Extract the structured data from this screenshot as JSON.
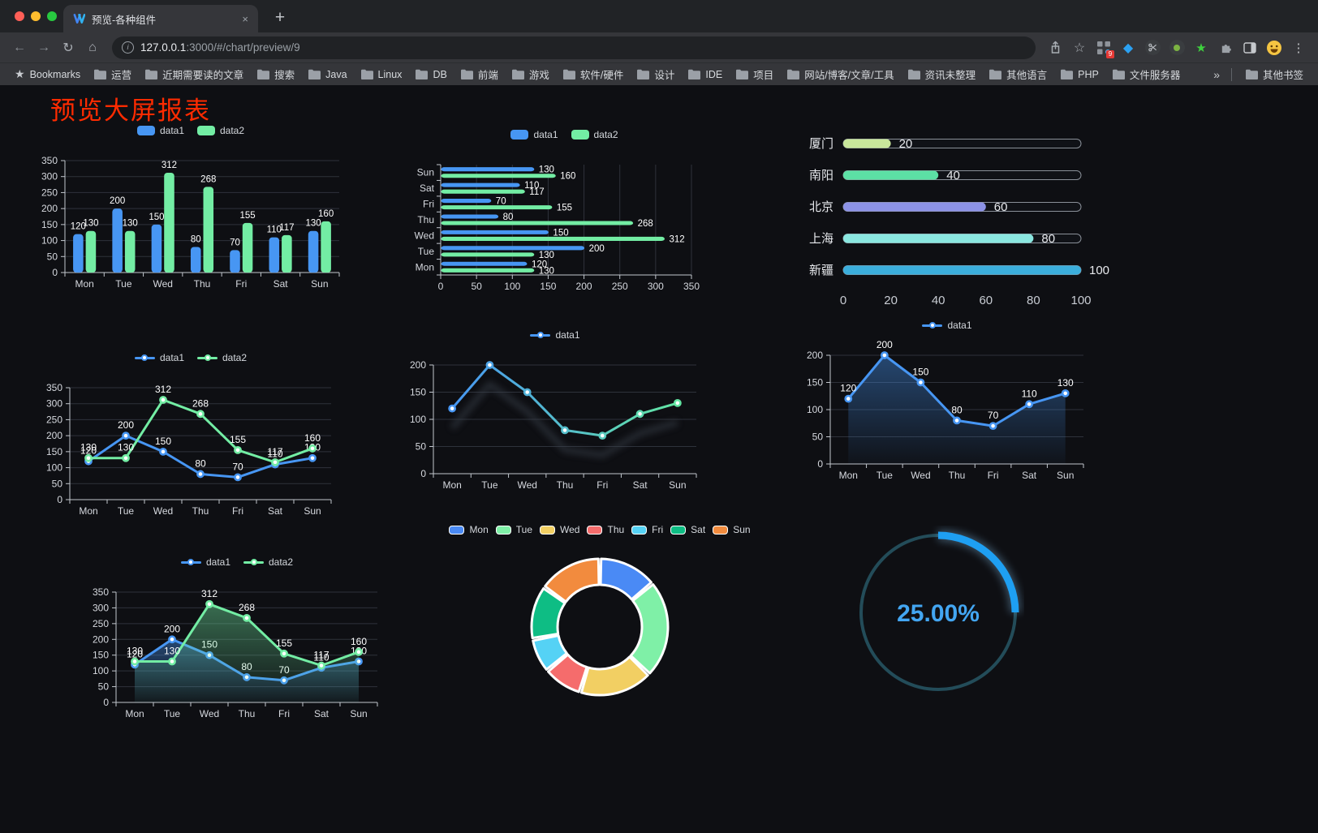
{
  "browser": {
    "tab": {
      "title": "预览-各种组件",
      "close_glyph": "×",
      "new_tab_glyph": "+"
    },
    "address": {
      "host": "127.0.0.1",
      "rest": ":3000/#/chart/preview/9"
    },
    "extensions_badge": "9",
    "bookmarks_label": "Bookmarks",
    "bookmarks": [
      "运营",
      "近期需要读的文章",
      "搜索",
      "Java",
      "Linux",
      "DB",
      "前端",
      "游戏",
      "软件/硬件",
      "设计",
      "IDE",
      "项目",
      "网站/博客/文章/工具",
      "资讯未整理",
      "其他语言",
      "PHP",
      "文件服务器"
    ],
    "overflow_glyph": "»",
    "other_bookmarks": "其他书签",
    "menu_glyph": "⋮"
  },
  "page": {
    "title": "预览大屏报表"
  },
  "chart_data": [
    {
      "type": "bar",
      "categories": [
        "Mon",
        "Tue",
        "Wed",
        "Thu",
        "Fri",
        "Sat",
        "Sun"
      ],
      "series": [
        {
          "name": "data1",
          "color": "#4796F3",
          "values": [
            120,
            200,
            150,
            80,
            70,
            110,
            130
          ]
        },
        {
          "name": "data2",
          "color": "#73EDA4",
          "values": [
            130,
            130,
            312,
            268,
            155,
            117,
            160
          ]
        }
      ],
      "ylim": [
        0,
        350
      ],
      "yticks": [
        0,
        50,
        100,
        150,
        200,
        250,
        300,
        350
      ],
      "legend": "rect",
      "value_labels": true,
      "grid": true
    },
    {
      "type": "hbar",
      "categories": [
        "Sun",
        "Sat",
        "Fri",
        "Thu",
        "Wed",
        "Tue",
        "Mon"
      ],
      "series": [
        {
          "name": "data1",
          "color": "#4796F3",
          "values": [
            130,
            110,
            70,
            80,
            150,
            200,
            120
          ]
        },
        {
          "name": "data2",
          "color": "#73EDA4",
          "values": [
            160,
            117,
            155,
            268,
            312,
            130,
            130
          ]
        }
      ],
      "xlim": [
        0,
        350
      ],
      "xticks": [
        0,
        50,
        100,
        150,
        200,
        250,
        300,
        350
      ],
      "legend": "rect",
      "value_labels": true,
      "grid": true
    },
    {
      "type": "progress",
      "rows": [
        {
          "label": "厦门",
          "value": 20,
          "color": "#C9E79B"
        },
        {
          "label": "南阳",
          "value": 40,
          "color": "#5CE0A5"
        },
        {
          "label": "北京",
          "value": 60,
          "color": "#8C92E6"
        },
        {
          "label": "上海",
          "value": 80,
          "color": "#8AE7E0"
        },
        {
          "label": "新疆",
          "value": 100,
          "color": "#3BAEDC"
        }
      ],
      "xlim": [
        0,
        100
      ],
      "xticks": [
        0,
        20,
        40,
        60,
        80,
        100
      ]
    },
    {
      "type": "line",
      "categories": [
        "Mon",
        "Tue",
        "Wed",
        "Thu",
        "Fri",
        "Sat",
        "Sun"
      ],
      "series": [
        {
          "name": "data1",
          "color": "#4796F3",
          "values": [
            120,
            200,
            150,
            80,
            70,
            110,
            130
          ]
        },
        {
          "name": "data2",
          "color": "#73EDA4",
          "values": [
            130,
            130,
            312,
            268,
            155,
            117,
            160
          ]
        }
      ],
      "ylim": [
        0,
        350
      ],
      "yticks": [
        0,
        50,
        100,
        150,
        200,
        250,
        300,
        350
      ],
      "legend": "dot",
      "value_labels": true,
      "grid": true
    },
    {
      "type": "line",
      "categories": [
        "Mon",
        "Tue",
        "Wed",
        "Thu",
        "Fri",
        "Sat",
        "Sun"
      ],
      "series": [
        {
          "name": "data1",
          "color": "#4796F3",
          "color2": "#63E6A3",
          "values": [
            120,
            200,
            150,
            80,
            70,
            110,
            130
          ]
        }
      ],
      "gradient": true,
      "shadow": true,
      "ylim": [
        0,
        200
      ],
      "yticks": [
        0,
        50,
        100,
        150,
        200
      ],
      "legend": "dot",
      "value_labels": false,
      "grid": true
    },
    {
      "type": "line",
      "categories": [
        "Mon",
        "Tue",
        "Wed",
        "Thu",
        "Fri",
        "Sat",
        "Sun"
      ],
      "series": [
        {
          "name": "data1",
          "color": "#4796F3",
          "values": [
            120,
            200,
            150,
            80,
            70,
            110,
            130
          ],
          "area": true
        }
      ],
      "ylim": [
        0,
        200
      ],
      "yticks": [
        0,
        50,
        100,
        150,
        200
      ],
      "legend": "dot",
      "value_labels": true,
      "grid": true
    },
    {
      "type": "line",
      "categories": [
        "Mon",
        "Tue",
        "Wed",
        "Thu",
        "Fri",
        "Sat",
        "Sun"
      ],
      "series": [
        {
          "name": "data1",
          "color": "#4796F3",
          "values": [
            120,
            200,
            150,
            80,
            70,
            110,
            130
          ],
          "area": true
        },
        {
          "name": "data2",
          "color": "#73EDA4",
          "values": [
            130,
            130,
            312,
            268,
            155,
            117,
            160
          ],
          "area": true
        }
      ],
      "ylim": [
        0,
        350
      ],
      "yticks": [
        0,
        50,
        100,
        150,
        200,
        250,
        300,
        350
      ],
      "legend": "dot",
      "value_labels": true,
      "grid": true
    },
    {
      "type": "donut",
      "labels": [
        "Mon",
        "Tue",
        "Wed",
        "Thu",
        "Fri",
        "Sat",
        "Sun"
      ],
      "values": [
        120,
        200,
        150,
        80,
        70,
        110,
        130
      ],
      "colors": [
        "#4A8AF5",
        "#7FF0A7",
        "#F2CF63",
        "#F56C6C",
        "#55D2F5",
        "#0EBD84",
        "#F28B3E"
      ],
      "legend": "rect-border"
    },
    {
      "type": "gauge",
      "value": 25,
      "display": "25.00%",
      "progress_color": "#1E9FF2",
      "track_color": "#234C59",
      "text_color": "#43A6F2"
    }
  ]
}
